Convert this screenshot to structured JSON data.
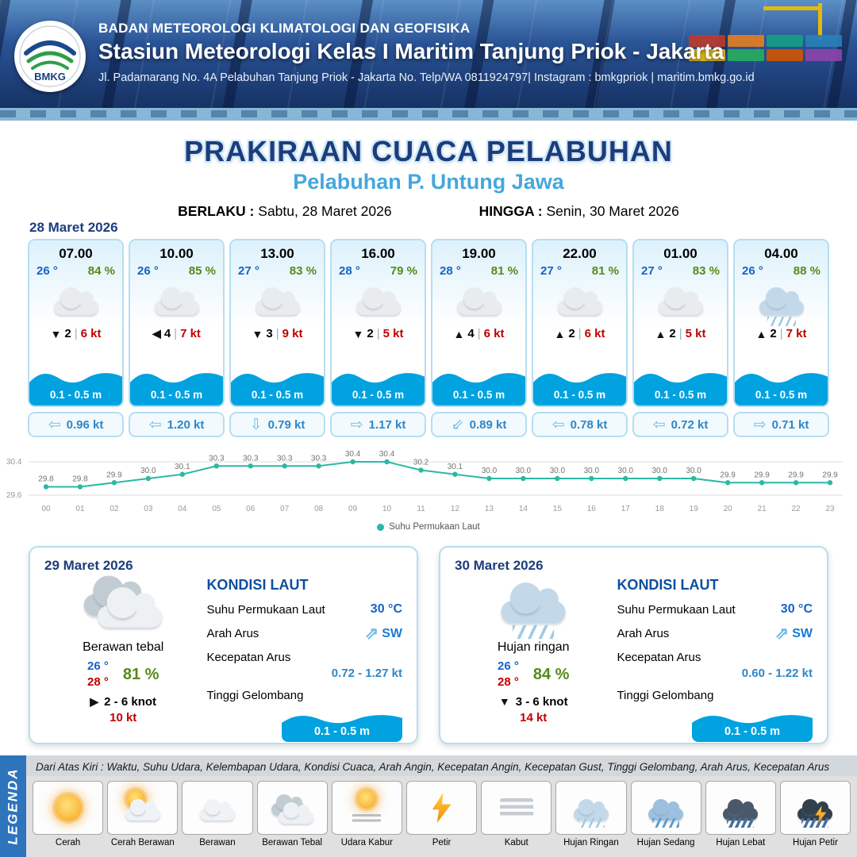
{
  "header": {
    "logo_text": "BMKG",
    "agency": "BADAN METEOROLOGI KLIMATOLOGI DAN GEOFISIKA",
    "station": "Stasiun Meteorologi Kelas I Maritim Tanjung Priok - Jakarta",
    "address": "Jl. Padamarang No. 4A Pelabuhan Tanjung Priok - Jakarta No. Telp/WA 0811924797| Instagram : bmkgpriok | maritim.bmkg.go.id"
  },
  "title": {
    "main": "PRAKIRAAN CUACA PELABUHAN",
    "subtitle": "Pelabuhan P. Untung Jawa",
    "valid_label": "BERLAKU :",
    "valid_value": "Sabtu, 28 Maret 2026",
    "until_label": "HINGGA :",
    "until_value": "Senin, 30 Maret 2026"
  },
  "forecast": {
    "date": "28 Maret 2026",
    "cards": [
      {
        "time": "07.00",
        "temp": "26 °",
        "humidity": "84 %",
        "weather": "berawan",
        "wind_arrow": "▼",
        "wind_value": "2",
        "wind_speed": "6 kt",
        "wave": "0.1 - 0.5 m",
        "current_arrow": "⇦",
        "current_speed": "0.96 kt"
      },
      {
        "time": "10.00",
        "temp": "26 °",
        "humidity": "85 %",
        "weather": "berawan",
        "wind_arrow": "◀",
        "wind_value": "4",
        "wind_speed": "7 kt",
        "wave": "0.1 - 0.5 m",
        "current_arrow": "⇦",
        "current_speed": "1.20 kt"
      },
      {
        "time": "13.00",
        "temp": "27 °",
        "humidity": "83 %",
        "weather": "berawan",
        "wind_arrow": "▼",
        "wind_value": "3",
        "wind_speed": "9 kt",
        "wave": "0.1 - 0.5 m",
        "current_arrow": "⇩",
        "current_speed": "0.79 kt"
      },
      {
        "time": "16.00",
        "temp": "28 °",
        "humidity": "79 %",
        "weather": "berawan",
        "wind_arrow": "▼",
        "wind_value": "2",
        "wind_speed": "5 kt",
        "wave": "0.1 - 0.5 m",
        "current_arrow": "⇨",
        "current_speed": "1.17 kt"
      },
      {
        "time": "19.00",
        "temp": "28 °",
        "humidity": "81 %",
        "weather": "berawan",
        "wind_arrow": "▲",
        "wind_value": "4",
        "wind_speed": "6 kt",
        "wave": "0.1 - 0.5 m",
        "current_arrow": "⇙",
        "current_speed": "0.89 kt"
      },
      {
        "time": "22.00",
        "temp": "27 °",
        "humidity": "81 %",
        "weather": "berawan",
        "wind_arrow": "▲",
        "wind_value": "2",
        "wind_speed": "6 kt",
        "wave": "0.1 - 0.5 m",
        "current_arrow": "⇦",
        "current_speed": "0.78 kt"
      },
      {
        "time": "01.00",
        "temp": "27 °",
        "humidity": "83 %",
        "weather": "berawan",
        "wind_arrow": "▲",
        "wind_value": "2",
        "wind_speed": "5 kt",
        "wave": "0.1 - 0.5 m",
        "current_arrow": "⇦",
        "current_speed": "0.72 kt"
      },
      {
        "time": "04.00",
        "temp": "26 °",
        "humidity": "88 %",
        "weather": "hujan-ringan",
        "wind_arrow": "▲",
        "wind_value": "2",
        "wind_speed": "7 kt",
        "wave": "0.1 - 0.5 m",
        "current_arrow": "⇨",
        "current_speed": "0.71 kt"
      }
    ]
  },
  "chart_data": {
    "type": "line",
    "series_label": "Suhu Permukaan Laut",
    "x": [
      "00",
      "01",
      "02",
      "03",
      "04",
      "05",
      "06",
      "07",
      "08",
      "09",
      "10",
      "11",
      "12",
      "13",
      "14",
      "15",
      "16",
      "17",
      "18",
      "19",
      "20",
      "21",
      "22",
      "23"
    ],
    "values": [
      29.8,
      29.8,
      29.9,
      30.0,
      30.1,
      30.3,
      30.3,
      30.3,
      30.3,
      30.4,
      30.4,
      30.2,
      30.1,
      30.0,
      30.0,
      30.0,
      30.0,
      30.0,
      30.0,
      30.0,
      29.9,
      29.9,
      29.9,
      29.9
    ],
    "ylim": [
      29.6,
      30.4
    ],
    "line_color": "#2cb8a5",
    "grid": "horizontal-minmax",
    "legend_position": "bottom"
  },
  "daily": [
    {
      "date": "29 Maret 2026",
      "weather_icon": "berawan-tebal",
      "weather": "Berawan tebal",
      "temp_min": "26 °",
      "temp_max": "28 °",
      "humidity": "81 %",
      "wind_arrow": "▶",
      "wind_range": "2 - 6 knot",
      "gust": "10 kt",
      "sea": {
        "title": "KONDISI LAUT",
        "sst_label": "Suhu Permukaan Laut",
        "sst_value": "30 °C",
        "current_dir_label": "Arah Arus",
        "current_dir_arrow": "⇗",
        "current_dir_value": "SW",
        "current_speed_label": "Kecepatan Arus",
        "current_speed_value": "0.72 - 1.27 kt",
        "wave_label": "Tinggi Gelombang",
        "wave_value": "0.1 - 0.5 m"
      }
    },
    {
      "date": "30 Maret 2026",
      "weather_icon": "hujan-ringan",
      "weather": "Hujan ringan",
      "temp_min": "26 °",
      "temp_max": "28 °",
      "humidity": "84 %",
      "wind_arrow": "▼",
      "wind_range": "3 - 6 knot",
      "gust": "14 kt",
      "sea": {
        "title": "KONDISI LAUT",
        "sst_label": "Suhu Permukaan Laut",
        "sst_value": "30 °C",
        "current_dir_label": "Arah Arus",
        "current_dir_arrow": "⇗",
        "current_dir_value": "SW",
        "current_speed_label": "Kecepatan Arus",
        "current_speed_value": "0.60 - 1.22 kt",
        "wave_label": "Tinggi Gelombang",
        "wave_value": "0.1 - 0.5 m"
      }
    }
  ],
  "legend": {
    "title": "LEGENDA",
    "note": "Dari Atas Kiri : Waktu, Suhu Udara, Kelembapan Udara, Kondisi Cuaca, Arah Angin, Kecepatan Angin, Kecepatan Gust, Tinggi Gelombang, Arah Arus, Kecepatan Arus",
    "items": [
      {
        "label": "Cerah",
        "icon": "sun"
      },
      {
        "label": "Cerah Berawan",
        "icon": "sun-cloud"
      },
      {
        "label": "Berawan",
        "icon": "cloud"
      },
      {
        "label": "Berawan Tebal",
        "icon": "cloud-thick"
      },
      {
        "label": "Udara Kabur",
        "icon": "haze"
      },
      {
        "label": "Petir",
        "icon": "lightning"
      },
      {
        "label": "Kabut",
        "icon": "fog"
      },
      {
        "label": "Hujan Ringan",
        "icon": "rain-light"
      },
      {
        "label": "Hujan Sedang",
        "icon": "rain-medium"
      },
      {
        "label": "Hujan Lebat",
        "icon": "rain-heavy"
      },
      {
        "label": "Hujan Petir",
        "icon": "storm"
      }
    ]
  },
  "colors": {
    "navy": "#1d3c7c",
    "light_blue": "#45a7dc",
    "wave_blue": "#00a2e0",
    "temp_blue": "#1663c7",
    "humidity_green": "#568a1a",
    "alert_red": "#c00000",
    "chart_teal": "#2cb8a5",
    "legend_band_blue": "#2d74bc"
  }
}
